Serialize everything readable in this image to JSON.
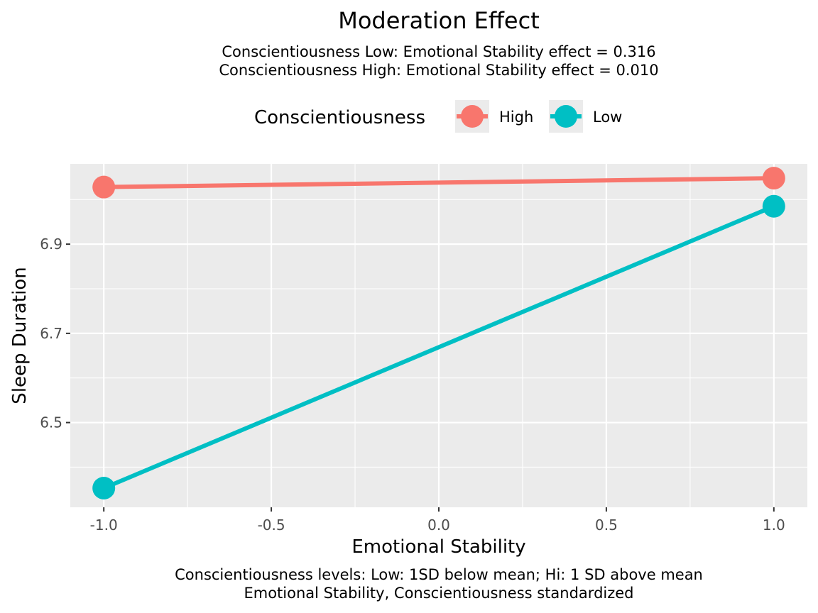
{
  "chart_data": {
    "type": "line",
    "title": "Moderation Effect",
    "subtitle": [
      "Conscientiousness Low: Emotional Stability effect = 0.316",
      "Conscientiousness High: Emotional Stability effect = 0.010"
    ],
    "caption": [
      "Conscientiousness levels: Low: 1SD below mean; Hi: 1 SD above mean",
      "Emotional Stability, Conscientiousness standardized"
    ],
    "xlabel": "Emotional Stability",
    "ylabel": "Sleep Duration",
    "xlim": [
      -1.1,
      1.1
    ],
    "ylim": [
      6.31,
      7.08
    ],
    "x_ticks": [
      -1.0,
      -0.5,
      0.0,
      0.5,
      1.0
    ],
    "x_tick_labels": [
      "-1.0",
      "-0.5",
      "0.0",
      "0.5",
      "1.0"
    ],
    "y_ticks": [
      6.5,
      6.7,
      6.9
    ],
    "y_tick_labels": [
      "6.5",
      "6.7",
      "6.9"
    ],
    "grid": true,
    "legend": {
      "title": "Conscientiousness",
      "position": "top"
    },
    "series": [
      {
        "name": "High",
        "color": "#F8766D",
        "x": [
          -1.0,
          1.0
        ],
        "y": [
          7.028,
          7.048
        ]
      },
      {
        "name": "Low",
        "color": "#00BFC4",
        "x": [
          -1.0,
          1.0
        ],
        "y": [
          6.353,
          6.985
        ]
      }
    ]
  }
}
